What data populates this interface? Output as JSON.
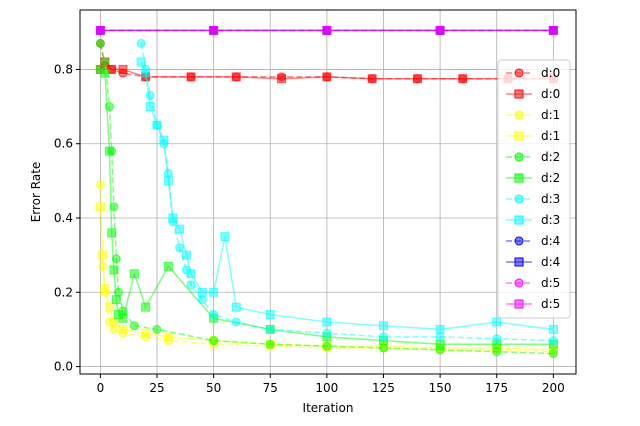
{
  "chart_data": {
    "type": "line",
    "xlabel": "Iteration",
    "ylabel": "Error Rate",
    "xlim": [
      -9,
      210
    ],
    "ylim": [
      -0.02,
      0.96
    ],
    "xticks": [
      0,
      25,
      50,
      75,
      100,
      125,
      150,
      175,
      200
    ],
    "yticks": [
      0.0,
      0.2,
      0.4,
      0.6,
      0.8
    ],
    "ytick_labels": [
      "0.0",
      "0.2",
      "0.4",
      "0.6",
      "0.8"
    ],
    "grid": true,
    "legend_position": "right",
    "series": [
      {
        "name": "d:0",
        "marker": "circle",
        "linestyle": "dashed",
        "color": "#ff0000",
        "x": [
          0,
          2,
          5,
          10,
          20,
          40,
          60,
          80,
          100,
          120,
          140,
          160,
          180,
          200
        ],
        "y": [
          0.87,
          0.81,
          0.8,
          0.79,
          0.78,
          0.78,
          0.78,
          0.78,
          0.78,
          0.775,
          0.775,
          0.775,
          0.775,
          0.775
        ]
      },
      {
        "name": "d:0",
        "marker": "square",
        "linestyle": "solid",
        "color": "#ff0000",
        "x": [
          0,
          2,
          5,
          10,
          20,
          40,
          60,
          80,
          100,
          120,
          140,
          160,
          180,
          200
        ],
        "y": [
          0.8,
          0.82,
          0.8,
          0.8,
          0.78,
          0.78,
          0.78,
          0.775,
          0.78,
          0.775,
          0.775,
          0.775,
          0.775,
          0.775
        ]
      },
      {
        "name": "d:1",
        "marker": "circle",
        "linestyle": "dashed",
        "color": "#ffff00",
        "x": [
          0,
          1,
          2,
          4,
          6,
          10,
          20,
          30,
          50,
          75,
          100,
          125,
          150,
          175,
          200
        ],
        "y": [
          0.49,
          0.27,
          0.2,
          0.12,
          0.1,
          0.09,
          0.08,
          0.07,
          0.06,
          0.055,
          0.05,
          0.05,
          0.045,
          0.045,
          0.04
        ]
      },
      {
        "name": "d:1",
        "marker": "square",
        "linestyle": "solid",
        "color": "#ffff00",
        "x": [
          0,
          1,
          2,
          4,
          6,
          10,
          20,
          30,
          50,
          75,
          100,
          125,
          150,
          175,
          200
        ],
        "y": [
          0.43,
          0.3,
          0.21,
          0.16,
          0.12,
          0.1,
          0.09,
          0.08,
          0.07,
          0.06,
          0.055,
          0.055,
          0.05,
          0.05,
          0.045
        ]
      },
      {
        "name": "d:2",
        "marker": "circle",
        "linestyle": "dashed",
        "color": "#00ff00",
        "x": [
          0,
          2,
          4,
          5,
          6,
          7,
          8,
          10,
          15,
          25,
          50,
          75,
          100,
          125,
          150,
          175,
          200
        ],
        "y": [
          0.87,
          0.82,
          0.7,
          0.58,
          0.43,
          0.29,
          0.2,
          0.15,
          0.11,
          0.1,
          0.07,
          0.06,
          0.055,
          0.05,
          0.045,
          0.04,
          0.035
        ]
      },
      {
        "name": "d:2",
        "marker": "square",
        "linestyle": "solid",
        "color": "#00ff00",
        "x": [
          0,
          2,
          4,
          5,
          6,
          7,
          8,
          10,
          15,
          20,
          30,
          50,
          75,
          100,
          125,
          150,
          175,
          200
        ],
        "y": [
          0.8,
          0.79,
          0.58,
          0.36,
          0.26,
          0.18,
          0.14,
          0.13,
          0.25,
          0.16,
          0.27,
          0.13,
          0.1,
          0.08,
          0.07,
          0.06,
          0.06,
          0.06
        ]
      },
      {
        "name": "d:3",
        "marker": "circle",
        "linestyle": "dashed",
        "color": "#00ffff",
        "x": [
          18,
          20,
          22,
          25,
          28,
          30,
          32,
          35,
          38,
          40,
          45,
          50,
          60,
          75,
          100,
          125,
          150,
          175,
          200
        ],
        "y": [
          0.87,
          0.8,
          0.73,
          0.65,
          0.6,
          0.52,
          0.39,
          0.32,
          0.26,
          0.22,
          0.18,
          0.14,
          0.12,
          0.1,
          0.09,
          0.08,
          0.08,
          0.075,
          0.07
        ]
      },
      {
        "name": "d:3",
        "marker": "square",
        "linestyle": "solid",
        "color": "#00ffff",
        "x": [
          18,
          20,
          22,
          25,
          28,
          30,
          32,
          35,
          38,
          40,
          45,
          50,
          55,
          60,
          75,
          100,
          125,
          150,
          175,
          200
        ],
        "y": [
          0.82,
          0.79,
          0.7,
          0.65,
          0.61,
          0.5,
          0.4,
          0.37,
          0.3,
          0.25,
          0.2,
          0.2,
          0.35,
          0.16,
          0.14,
          0.12,
          0.11,
          0.1,
          0.12,
          0.1
        ]
      },
      {
        "name": "d:4",
        "marker": "circle",
        "linestyle": "dashed",
        "color": "#0000ff",
        "x": [
          0,
          50,
          100,
          150,
          200
        ],
        "y": [
          0.905,
          0.905,
          0.905,
          0.905,
          0.905
        ]
      },
      {
        "name": "d:4",
        "marker": "square",
        "linestyle": "solid",
        "color": "#0000ff",
        "x": [
          0,
          50,
          100,
          150,
          200
        ],
        "y": [
          0.905,
          0.905,
          0.905,
          0.905,
          0.905
        ]
      },
      {
        "name": "d:5",
        "marker": "circle",
        "linestyle": "dashed",
        "color": "#ff00ff",
        "x": [
          0,
          50,
          100,
          150,
          200
        ],
        "y": [
          0.905,
          0.905,
          0.905,
          0.905,
          0.905
        ]
      },
      {
        "name": "d:5",
        "marker": "square",
        "linestyle": "solid",
        "color": "#ff00ff",
        "x": [
          0,
          50,
          100,
          150,
          200
        ],
        "y": [
          0.905,
          0.905,
          0.905,
          0.905,
          0.905
        ]
      }
    ]
  }
}
